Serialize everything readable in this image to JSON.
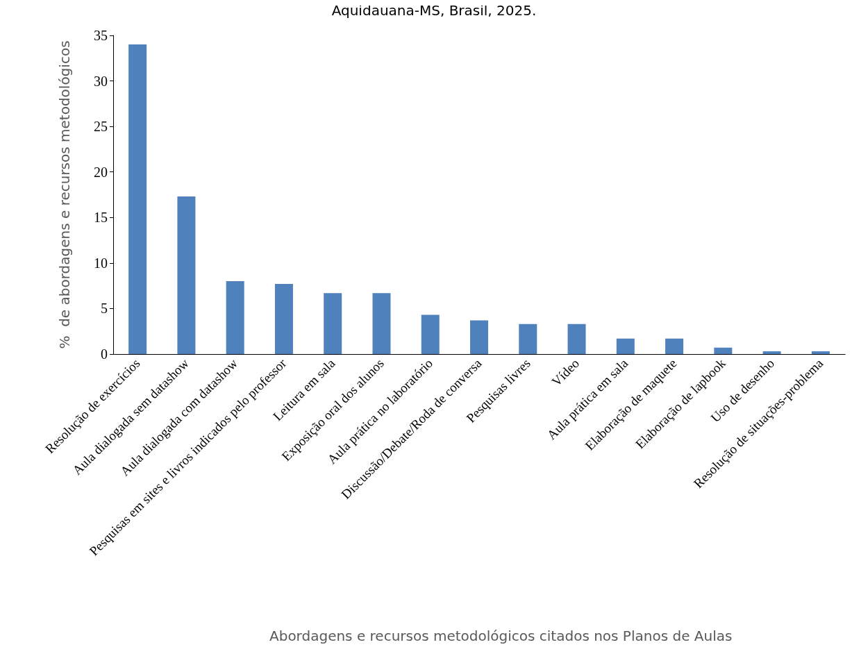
{
  "chart_data": {
    "type": "bar",
    "title": "Aquidauana-MS, Brasil, 2025.",
    "xlabel": "Abordagens e recursos metodológicos citados nos Planos de Aulas",
    "ylabel": "%  de abordagens e recursos metodológicos",
    "categories": [
      "Resolução de exercícios",
      "Aula dialogada sem datashow",
      "Aula dialogada com datashow",
      "Pesquisas em sites e livros indicados pelo professor",
      "Leitura em sala",
      "Exposição oral dos alunos",
      "Aula prática no laboratório",
      "Discussão/Debate/Roda de conversa",
      "Pesquisas livres",
      "Vídeo",
      "Aula prática em sala",
      "Elaboração de maquete",
      "Elaboração de lapbook",
      "Uso de desenho",
      "Resolução de situações-problema"
    ],
    "values": [
      34,
      17.3,
      8,
      7.7,
      6.7,
      6.7,
      4.3,
      3.7,
      3.3,
      3.3,
      1.7,
      1.7,
      0.7,
      0.3,
      0.3
    ],
    "color": "#4f81bd",
    "ylim": [
      0,
      35
    ],
    "yticks": [
      0,
      5,
      10,
      15,
      20,
      25,
      30,
      35
    ],
    "grid": false
  }
}
